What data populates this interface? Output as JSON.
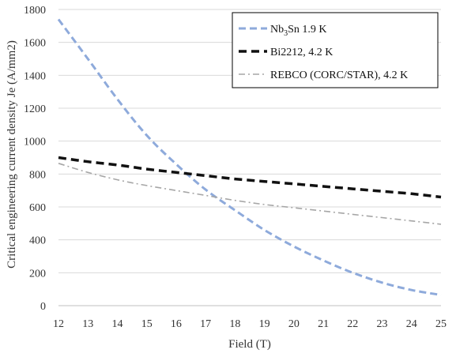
{
  "chart_data": {
    "type": "line",
    "title": "",
    "xlabel": "Field (T)",
    "ylabel": "Critical engineering current density Je (A/mm2)",
    "xlim": [
      12,
      25
    ],
    "ylim": [
      0,
      1800
    ],
    "xticks": [
      12,
      13,
      14,
      15,
      16,
      17,
      18,
      19,
      20,
      21,
      22,
      23,
      24,
      25
    ],
    "yticks": [
      0,
      200,
      400,
      600,
      800,
      1000,
      1200,
      1400,
      1600,
      1800
    ],
    "grid": "horizontal",
    "legend_position": "top-right",
    "series": [
      {
        "name": "Nb3Sn 1.9 K",
        "name_parts": {
          "base": "Nb",
          "sub": "3",
          "rest": "Sn 1.9 K"
        },
        "color": "#8eaadb",
        "line_style": "dashed",
        "x": [
          12,
          13,
          14,
          15,
          16,
          17,
          18,
          19,
          20,
          21,
          22,
          23,
          24,
          25
        ],
        "y": [
          1740,
          1500,
          1255,
          1035,
          860,
          705,
          580,
          460,
          360,
          275,
          200,
          140,
          95,
          65
        ]
      },
      {
        "name": "Bi2212, 4.2 K",
        "color": "#111111",
        "line_style": "dashed-bold",
        "x": [
          12,
          13,
          14,
          15,
          16,
          17,
          18,
          19,
          20,
          21,
          22,
          23,
          24,
          25
        ],
        "y": [
          900,
          875,
          855,
          830,
          810,
          790,
          770,
          755,
          740,
          725,
          710,
          695,
          680,
          660
        ]
      },
      {
        "name": "REBCO (CORC/STAR), 4.2 K",
        "color": "#a6a6a6",
        "line_style": "dash-dot",
        "x": [
          12,
          13,
          14,
          15,
          16,
          17,
          18,
          19,
          20,
          21,
          22,
          23,
          24,
          25
        ],
        "y": [
          865,
          810,
          765,
          730,
          700,
          670,
          640,
          615,
          595,
          575,
          555,
          535,
          515,
          495
        ]
      }
    ]
  }
}
